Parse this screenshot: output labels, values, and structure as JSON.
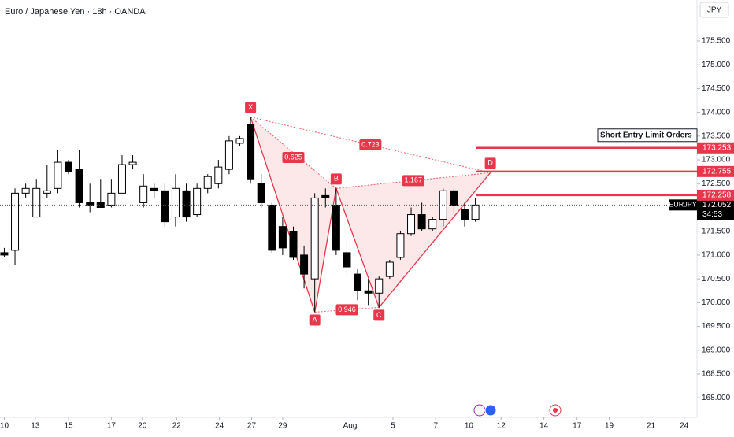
{
  "chart_data": {
    "type": "candlestick",
    "title": "Euro / Japanese Yen · 18h · OANDA",
    "currency": "JPY",
    "symbol": "EURJPY",
    "countdown": "34:53",
    "last": 172.052,
    "x": [
      0,
      1,
      2,
      3,
      4,
      5,
      6,
      7,
      8,
      9,
      10,
      11,
      12,
      13,
      14,
      15,
      16,
      17,
      18,
      19,
      20,
      21,
      22,
      23,
      24,
      25,
      26,
      27,
      28,
      29,
      30,
      31,
      32,
      33,
      34,
      35,
      36,
      37,
      38,
      39,
      40,
      41,
      42,
      43,
      44
    ],
    "open": [
      171.05,
      171.1,
      172.3,
      171.8,
      172.3,
      172.4,
      172.95,
      172.8,
      172.1,
      172.1,
      172.05,
      172.3,
      172.9,
      172.1,
      172.4,
      172.35,
      171.8,
      172.35,
      171.85,
      172.4,
      172.5,
      172.8,
      173.35,
      173.75,
      172.5,
      172.05,
      171.6,
      171.5,
      171.0,
      170.5,
      172.25,
      172.05,
      171.05,
      170.6,
      170.25,
      170.2,
      170.55,
      170.95,
      171.45,
      171.85,
      171.55,
      171.75,
      172.35,
      171.95,
      171.75
    ],
    "high": [
      171.15,
      172.4,
      172.5,
      172.6,
      172.9,
      173.2,
      173.0,
      173.2,
      172.5,
      172.6,
      172.6,
      173.1,
      173.1,
      172.7,
      172.5,
      172.5,
      172.7,
      172.5,
      172.5,
      172.7,
      173.0,
      173.5,
      173.5,
      173.9,
      172.7,
      172.1,
      171.8,
      171.6,
      171.2,
      172.3,
      172.4,
      172.4,
      171.3,
      170.7,
      170.5,
      170.55,
      170.9,
      171.5,
      172.0,
      172.1,
      171.8,
      172.4,
      172.4,
      172.1,
      172.2
    ],
    "low": [
      170.95,
      170.8,
      172.2,
      171.8,
      172.2,
      172.3,
      172.7,
      172.0,
      171.9,
      172.0,
      172.0,
      172.3,
      172.8,
      172.0,
      172.2,
      171.6,
      171.6,
      171.7,
      171.8,
      172.3,
      172.4,
      172.7,
      173.3,
      172.5,
      172.0,
      171.05,
      171.0,
      170.9,
      170.3,
      169.8,
      172.0,
      171.0,
      170.6,
      170.05,
      169.95,
      169.9,
      170.5,
      170.9,
      171.4,
      171.5,
      171.5,
      171.6,
      171.9,
      171.6,
      171.7
    ],
    "close": [
      171.0,
      172.3,
      172.4,
      172.4,
      172.35,
      172.95,
      172.75,
      172.1,
      172.05,
      172.0,
      172.3,
      172.9,
      172.95,
      172.45,
      172.35,
      171.7,
      172.4,
      171.8,
      172.4,
      172.65,
      172.85,
      173.4,
      173.45,
      172.6,
      172.1,
      171.1,
      171.15,
      170.95,
      170.6,
      172.2,
      172.2,
      171.1,
      170.75,
      170.25,
      170.2,
      170.5,
      170.85,
      171.45,
      171.85,
      171.55,
      171.75,
      172.35,
      172.05,
      171.75,
      172.052
    ],
    "up_color": "#ffffff",
    "down_color": "#000000",
    "pattern_color": "#e8364a",
    "pattern": {
      "points": [
        {
          "label": "X",
          "x": 23,
          "y": 173.9
        },
        {
          "label": "A",
          "x": 29,
          "y": 169.8
        },
        {
          "label": "B",
          "x": 31,
          "y": 172.4
        },
        {
          "label": "C",
          "x": 35,
          "y": 169.9
        },
        {
          "label": "D",
          "x": 45.4,
          "y": 172.73
        }
      ],
      "ratios": [
        0.625,
        0.723,
        0.946,
        1.167
      ]
    },
    "levels_title": "Short Entry Limit Orders",
    "levels": [
      173.253,
      172.755,
      172.258
    ],
    "xlim": [
      -0.4,
      64.7
    ],
    "ylim": [
      167.59,
      176.36
    ],
    "xticks": [
      {
        "value": 0,
        "label": "10"
      },
      {
        "value": 2.9,
        "label": "13"
      },
      {
        "value": 6.0,
        "label": "15"
      },
      {
        "value": 10.0,
        "label": "17"
      },
      {
        "value": 12.9,
        "label": "20"
      },
      {
        "value": 16.1,
        "label": "22"
      },
      {
        "value": 20.1,
        "label": "24"
      },
      {
        "value": 23.1,
        "label": "27"
      },
      {
        "value": 26.0,
        "label": "29"
      },
      {
        "value": 32.3,
        "label": "Aug"
      },
      {
        "value": 36.3,
        "label": "5"
      },
      {
        "value": 40.3,
        "label": "7"
      },
      {
        "value": 43.4,
        "label": "10"
      },
      {
        "value": 46.4,
        "label": "12"
      },
      {
        "value": 50.4,
        "label": "14"
      },
      {
        "value": 53.5,
        "label": "17"
      },
      {
        "value": 56.5,
        "label": "19"
      },
      {
        "value": 60.4,
        "label": "21"
      },
      {
        "value": 63.5,
        "label": "24"
      }
    ],
    "yticks": [
      {
        "value": 168,
        "label": "168.000"
      },
      {
        "value": 168.5,
        "label": "168.500"
      },
      {
        "value": 169,
        "label": "169.000"
      },
      {
        "value": 169.5,
        "label": "169.500"
      },
      {
        "value": 170,
        "label": "170.000"
      },
      {
        "value": 170.5,
        "label": "170.500"
      },
      {
        "value": 171,
        "label": "171.000"
      },
      {
        "value": 171.5,
        "label": "171.500"
      },
      {
        "value": 172,
        "label": "172.000"
      },
      {
        "value": 172.5,
        "label": "172.500"
      },
      {
        "value": 173,
        "label": "173.000"
      },
      {
        "value": 173.5,
        "label": "173.500"
      },
      {
        "value": 174,
        "label": "174.000"
      },
      {
        "value": 174.5,
        "label": "174.500"
      },
      {
        "value": 175,
        "label": "175.000"
      },
      {
        "value": 175.5,
        "label": "175.500"
      }
    ]
  }
}
